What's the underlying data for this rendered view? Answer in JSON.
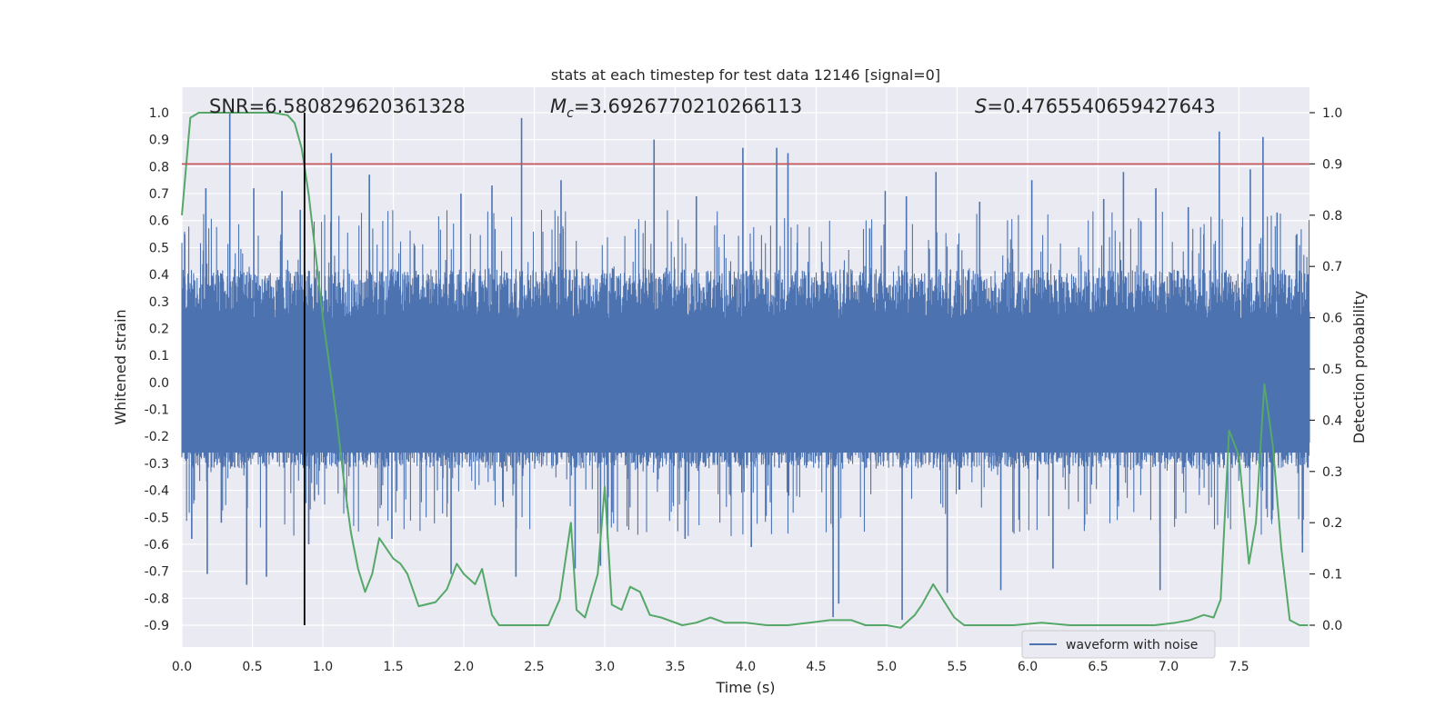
{
  "chart_data": {
    "type": "line",
    "title": "stats at each timestep for test data 12146 [signal=0]",
    "xlabel": "Time (s)",
    "ylabel": "Whitened strain",
    "y2label": "Detection probability",
    "xlim": [
      0.0,
      8.0
    ],
    "ylim": [
      -0.9,
      1.0
    ],
    "y2lim": [
      0.0,
      1.0
    ],
    "xticks": [
      "0.0",
      "0.5",
      "1.0",
      "1.5",
      "2.0",
      "2.5",
      "3.0",
      "3.5",
      "4.0",
      "4.5",
      "5.0",
      "5.5",
      "6.0",
      "6.5",
      "7.0",
      "7.5"
    ],
    "yticks": [
      "1.0",
      "0.9",
      "0.8",
      "0.7",
      "0.6",
      "0.5",
      "0.4",
      "0.3",
      "0.2",
      "0.1",
      "0.0",
      "-0.1",
      "-0.2",
      "-0.3",
      "-0.4",
      "-0.5",
      "-0.6",
      "-0.7",
      "-0.8",
      "-0.9"
    ],
    "y2ticks": [
      "1.0",
      "0.9",
      "0.8",
      "0.7",
      "0.6",
      "0.5",
      "0.4",
      "0.3",
      "0.2",
      "0.1",
      "0.0"
    ],
    "grid": true,
    "legend": {
      "location": "lower-right",
      "entries": [
        "waveform with noise"
      ]
    },
    "annotations": {
      "snr": "SNR=6.580829620361328",
      "mc_symbol": "M",
      "mc_sub": "c",
      "mc_value": "=3.6926770210266113",
      "s_symbol": "S",
      "s_value": "=0.4765540659427643"
    },
    "reference_lines": {
      "threshold_y2": 0.9,
      "marker_time": 0.87
    },
    "colors": {
      "waveform": "#4c72b0",
      "probability": "#55a868",
      "threshold": "#c44e52",
      "marker": "#000000",
      "background": "#eaeaf2"
    },
    "series": [
      {
        "name": "waveform with noise",
        "noise_band": [
          -0.32,
          0.42
        ],
        "peaks": [
          [
            0.02,
            0.55
          ],
          [
            0.07,
            -0.58
          ],
          [
            0.17,
            0.72
          ],
          [
            0.18,
            -0.71
          ],
          [
            0.28,
            -0.52
          ],
          [
            0.34,
            1.0
          ],
          [
            0.46,
            -0.75
          ],
          [
            0.51,
            0.72
          ],
          [
            0.6,
            -0.72
          ],
          [
            0.71,
            0.71
          ],
          [
            0.84,
            0.64
          ],
          [
            0.9,
            -0.6
          ],
          [
            1.06,
            0.85
          ],
          [
            1.33,
            0.77
          ],
          [
            1.49,
            -0.58
          ],
          [
            1.91,
            -0.71
          ],
          [
            1.98,
            0.7
          ],
          [
            2.2,
            0.73
          ],
          [
            2.37,
            -0.72
          ],
          [
            2.41,
            0.98
          ],
          [
            2.69,
            0.75
          ],
          [
            2.79,
            -0.69
          ],
          [
            2.97,
            -0.68
          ],
          [
            3.02,
            -0.58
          ],
          [
            3.35,
            0.9
          ],
          [
            3.57,
            -0.58
          ],
          [
            3.65,
            0.69
          ],
          [
            3.98,
            0.87
          ],
          [
            4.04,
            -0.61
          ],
          [
            4.22,
            0.87
          ],
          [
            4.3,
            0.85
          ],
          [
            4.62,
            -0.87
          ],
          [
            4.66,
            -0.82
          ],
          [
            4.99,
            0.71
          ],
          [
            5.11,
            -0.88
          ],
          [
            5.14,
            0.69
          ],
          [
            5.35,
            0.78
          ],
          [
            5.43,
            -0.78
          ],
          [
            5.66,
            0.67
          ],
          [
            5.81,
            -0.77
          ],
          [
            6.03,
            0.75
          ],
          [
            6.18,
            -0.69
          ],
          [
            6.54,
            0.68
          ],
          [
            6.68,
            0.78
          ],
          [
            6.91,
            0.72
          ],
          [
            6.94,
            -0.77
          ],
          [
            7.14,
            0.65
          ],
          [
            7.36,
            0.93
          ],
          [
            7.58,
            0.79
          ],
          [
            7.67,
            0.91
          ],
          [
            7.77,
            0.63
          ],
          [
            7.91,
            0.55
          ],
          [
            7.95,
            -0.63
          ]
        ]
      },
      {
        "name": "",
        "axis": "right",
        "x": [
          0.0,
          0.06,
          0.12,
          0.25,
          0.45,
          0.65,
          0.75,
          0.8,
          0.85,
          0.9,
          0.95,
          1.0,
          1.05,
          1.1,
          1.15,
          1.2,
          1.25,
          1.3,
          1.35,
          1.4,
          1.45,
          1.5,
          1.55,
          1.6,
          1.68,
          1.8,
          1.88,
          1.95,
          2.0,
          2.08,
          2.13,
          2.2,
          2.25,
          2.35,
          2.5,
          2.6,
          2.68,
          2.76,
          2.8,
          2.86,
          2.95,
          3.0,
          3.05,
          3.12,
          3.18,
          3.25,
          3.32,
          3.4,
          3.55,
          3.65,
          3.75,
          3.85,
          4.0,
          4.15,
          4.3,
          4.45,
          4.6,
          4.75,
          4.85,
          5.0,
          5.1,
          5.2,
          5.25,
          5.33,
          5.4,
          5.48,
          5.55,
          5.7,
          5.9,
          6.1,
          6.3,
          6.5,
          6.7,
          6.9,
          7.05,
          7.15,
          7.25,
          7.32,
          7.37,
          7.43,
          7.5,
          7.57,
          7.62,
          7.68,
          7.74,
          7.8,
          7.86,
          7.93,
          7.99
        ],
        "y": [
          0.8,
          0.99,
          1.0,
          1.0,
          1.0,
          1.0,
          0.995,
          0.98,
          0.93,
          0.84,
          0.72,
          0.6,
          0.5,
          0.4,
          0.28,
          0.18,
          0.11,
          0.065,
          0.1,
          0.17,
          0.15,
          0.13,
          0.12,
          0.1,
          0.037,
          0.045,
          0.07,
          0.12,
          0.1,
          0.08,
          0.11,
          0.02,
          0.0,
          0.0,
          0.0,
          0.0,
          0.05,
          0.2,
          0.03,
          0.015,
          0.1,
          0.27,
          0.04,
          0.03,
          0.075,
          0.065,
          0.02,
          0.015,
          0.0,
          0.005,
          0.015,
          0.005,
          0.005,
          0.0,
          0.0,
          0.005,
          0.01,
          0.01,
          0.0,
          0.0,
          -0.005,
          0.02,
          0.04,
          0.08,
          0.05,
          0.015,
          0.0,
          0.0,
          0.0,
          0.005,
          0.0,
          0.0,
          0.0,
          0.0,
          0.005,
          0.01,
          0.02,
          0.015,
          0.05,
          0.38,
          0.33,
          0.12,
          0.2,
          0.47,
          0.35,
          0.15,
          0.01,
          0.0,
          0.0
        ]
      }
    ]
  }
}
